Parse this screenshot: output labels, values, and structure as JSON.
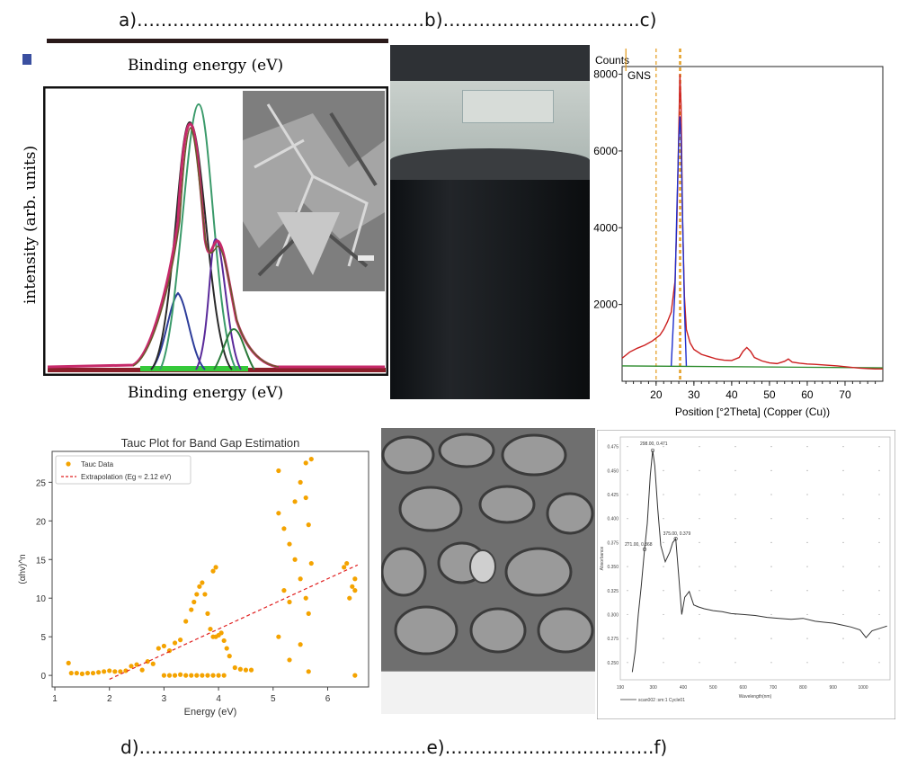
{
  "captions": {
    "top": "a)…………………………………………b)……….…………………..c)",
    "bottom": "d)…………………………………………e)……….…………………….f)"
  },
  "panel_a": {
    "top_label": "Binding energy (eV)",
    "bottom_label": "Binding energy (eV)",
    "ylabel": "intensity (arb. units)"
  },
  "chart_data": [
    {
      "panel": "c",
      "type": "line",
      "legend": "GNS",
      "ylabel": "Counts",
      "xlabel": "Position [°2Theta] (Copper (Cu))",
      "xlim": [
        11,
        80
      ],
      "ylim": [
        0,
        8200
      ],
      "xticks": [
        20,
        30,
        40,
        50,
        60,
        70
      ],
      "yticks": [
        2000,
        4000,
        6000,
        8000
      ],
      "series": [
        {
          "color": "#cc1f1f",
          "x": [
            11,
            13,
            15,
            17,
            19,
            21,
            22,
            23,
            24,
            25,
            25.5,
            26,
            26.3,
            26.6,
            27,
            27.5,
            28,
            29,
            30,
            32,
            34,
            36,
            38,
            40,
            42,
            43,
            44,
            45,
            46,
            48,
            50,
            52,
            54,
            55,
            56,
            58,
            60,
            62,
            65,
            68,
            70,
            72,
            74,
            76,
            78,
            80
          ],
          "y": [
            600,
            760,
            860,
            940,
            1050,
            1200,
            1350,
            1550,
            1800,
            2600,
            4200,
            6500,
            8000,
            7200,
            4200,
            2200,
            1350,
            1000,
            830,
            700,
            640,
            580,
            550,
            540,
            620,
            780,
            880,
            780,
            620,
            530,
            480,
            460,
            520,
            580,
            500,
            470,
            450,
            440,
            420,
            400,
            380,
            360,
            340,
            330,
            320,
            320
          ]
        },
        {
          "color": "#1f2fcc",
          "x": [
            24,
            25,
            25.5,
            26,
            26.3,
            26.6,
            27,
            27.5,
            28
          ],
          "y": [
            400,
            2400,
            4500,
            6300,
            6900,
            6300,
            4300,
            1900,
            400
          ]
        }
      ],
      "baseline": {
        "color": "#2a8a2a",
        "x": [
          11,
          80
        ],
        "y": [
          400,
          350
        ]
      }
    },
    {
      "panel": "d",
      "type": "scatter",
      "title": "Tauc Plot for Band Gap Estimation",
      "xlabel": "Energy (eV)",
      "ylabel": "(αhv)^n",
      "xlim": [
        0.95,
        6.75
      ],
      "ylim": [
        -1.5,
        29
      ],
      "xticks": [
        1,
        2,
        3,
        4,
        5,
        6
      ],
      "yticks": [
        0,
        5,
        10,
        15,
        20,
        25
      ],
      "legend": [
        "Tauc Data",
        "Extrapolation (Eg ≈ 2.12 eV)"
      ],
      "series": [
        {
          "name": "Tauc Data",
          "color": "#f4a300",
          "x": [
            1.25,
            1.3,
            1.4,
            1.5,
            1.6,
            1.7,
            1.8,
            1.9,
            2.0,
            2.1,
            2.2,
            2.3,
            2.4,
            2.5,
            2.6,
            2.7,
            2.8,
            2.9,
            3.0,
            3.1,
            3.2,
            3.3,
            3.4,
            3.5,
            3.55,
            3.6,
            3.65,
            3.7,
            3.75,
            3.8,
            3.85,
            3.9,
            3.95,
            4.0,
            4.05,
            4.1,
            4.15,
            4.2,
            4.3,
            4.4,
            4.5,
            4.6,
            3.0,
            3.1,
            3.2,
            3.3,
            3.4,
            3.5,
            3.6,
            3.7,
            3.8,
            3.9,
            4.0,
            4.1,
            3.9,
            3.95,
            5.1,
            5.1,
            5.1,
            5.2,
            5.2,
            5.3,
            5.3,
            5.3,
            5.4,
            5.4,
            5.5,
            5.5,
            5.5,
            5.6,
            5.6,
            5.6,
            5.65,
            5.65,
            5.65,
            5.7,
            5.7,
            6.3,
            6.35,
            6.4,
            6.45,
            6.5,
            6.5,
            6.5
          ],
          "y": [
            1.6,
            0.3,
            0.3,
            0.2,
            0.3,
            0.3,
            0.4,
            0.5,
            0.6,
            0.5,
            0.5,
            0.6,
            1.2,
            1.4,
            0.7,
            1.8,
            1.5,
            3.5,
            3.8,
            3.2,
            4.2,
            4.6,
            7.0,
            8.5,
            9.5,
            10.5,
            11.5,
            12.0,
            10.5,
            8.0,
            6.0,
            5.0,
            5.0,
            5.2,
            5.5,
            4.5,
            3.5,
            2.5,
            1.0,
            0.8,
            0.7,
            0.7,
            0.0,
            0.0,
            0.0,
            0.1,
            0.0,
            0.0,
            0.0,
            0.0,
            0.0,
            0.0,
            0.0,
            0.0,
            13.5,
            14.0,
            26.5,
            21.0,
            5.0,
            11.0,
            19.0,
            17.0,
            9.5,
            2.0,
            22.5,
            15.0,
            25.0,
            12.5,
            4.0,
            27.5,
            23.0,
            10.0,
            19.5,
            8.0,
            0.5,
            28.0,
            14.5,
            14.0,
            14.5,
            10.0,
            11.5,
            12.5,
            11.0,
            0.0
          ]
        },
        {
          "name": "Extrapolation (Eg ≈ 2.12 eV)",
          "color": "#e02020",
          "x": [
            2.0,
            6.55
          ],
          "y": [
            -0.5,
            14.3
          ]
        }
      ]
    },
    {
      "panel": "f",
      "type": "line",
      "xlabel": "Wavelength(nm)",
      "ylabel": "Absorbance",
      "xlim": [
        190,
        1090
      ],
      "ylim": [
        0.232,
        0.485
      ],
      "xticks": [
        190,
        300,
        400,
        500,
        600,
        700,
        800,
        900,
        1000
      ],
      "yticks": [
        0.25,
        0.275,
        0.3,
        0.325,
        0.35,
        0.375,
        0.4,
        0.425,
        0.45,
        0.475
      ],
      "annotations": [
        "298.00, 0.471",
        "271.00, 0.368",
        "375.00, 0.379"
      ],
      "legend": "scan002 :sm:1 Cycle01",
      "series": [
        {
          "color": "#333333",
          "x": [
            230,
            240,
            250,
            260,
            271,
            280,
            290,
            298,
            305,
            315,
            325,
            340,
            355,
            365,
            375,
            385,
            395,
            405,
            420,
            435,
            450,
            470,
            500,
            530,
            560,
            600,
            640,
            680,
            720,
            760,
            800,
            840,
            870,
            900,
            930,
            960,
            990,
            1010,
            1030,
            1050,
            1070,
            1080
          ],
          "y": [
            0.24,
            0.262,
            0.3,
            0.33,
            0.368,
            0.395,
            0.445,
            0.471,
            0.455,
            0.41,
            0.372,
            0.355,
            0.365,
            0.375,
            0.379,
            0.34,
            0.3,
            0.318,
            0.324,
            0.31,
            0.308,
            0.306,
            0.304,
            0.303,
            0.301,
            0.3,
            0.299,
            0.297,
            0.296,
            0.295,
            0.296,
            0.293,
            0.292,
            0.291,
            0.289,
            0.287,
            0.284,
            0.276,
            0.283,
            0.285,
            0.287,
            0.288
          ]
        }
      ]
    }
  ]
}
